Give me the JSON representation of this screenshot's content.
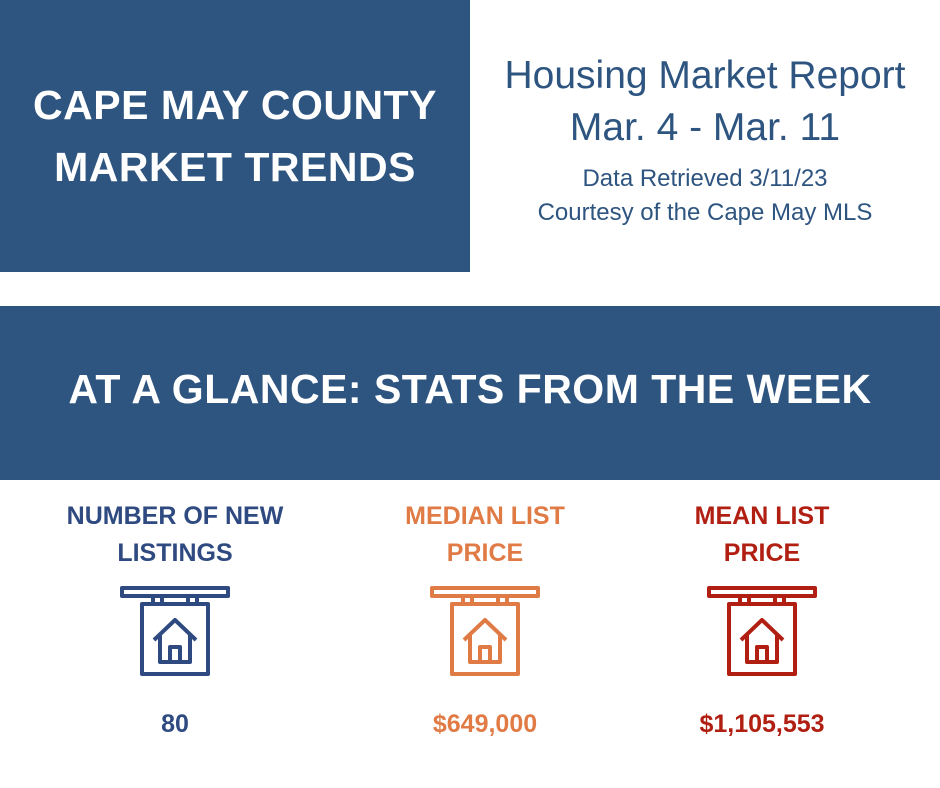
{
  "header": {
    "title_lines": [
      "CAPE MAY COUNTY",
      "MARKET TRENDS"
    ]
  },
  "report": {
    "title": "Housing Market Report",
    "dates": "Mar. 4 - Mar. 11",
    "retrieved": "Data Retrieved 3/11/23",
    "courtesy": "Courtesy of the Cape May MLS"
  },
  "banner": {
    "text": "AT A GLANCE: STATS FROM THE WEEK"
  },
  "stats": [
    {
      "label_lines": [
        "NUMBER OF NEW",
        "LISTINGS"
      ],
      "value": "80",
      "color": "#2e4a80",
      "icon": "house-sign-icon"
    },
    {
      "label_lines": [
        "MEDIAN LIST",
        "PRICE"
      ],
      "value": "$649,000",
      "color": "#e07b45",
      "icon": "house-sign-icon"
    },
    {
      "label_lines": [
        "MEAN LIST",
        "PRICE"
      ],
      "value": "$1,105,553",
      "color": "#b11f12",
      "icon": "house-sign-icon"
    }
  ],
  "colors": {
    "navy": "#2e5480",
    "white": "#ffffff"
  }
}
